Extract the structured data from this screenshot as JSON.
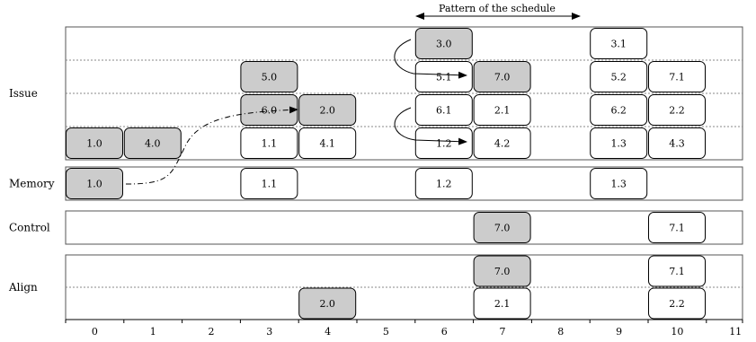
{
  "header": {
    "pattern_label": "Pattern of the schedule"
  },
  "columns": [
    "0",
    "1",
    "2",
    "3",
    "4",
    "5",
    "6",
    "7",
    "8",
    "9",
    "10",
    "11"
  ],
  "units": [
    {
      "id": "issue",
      "label": "Issue",
      "rows": 4,
      "cells": [
        {
          "row": 0,
          "col": 6,
          "text": "3.0",
          "shaded": true
        },
        {
          "row": 0,
          "col": 9,
          "text": "3.1",
          "shaded": false
        },
        {
          "row": 1,
          "col": 3,
          "text": "5.0",
          "shaded": true
        },
        {
          "row": 1,
          "col": 6,
          "text": "5.1",
          "shaded": false
        },
        {
          "row": 1,
          "col": 7,
          "text": "7.0",
          "shaded": true
        },
        {
          "row": 1,
          "col": 9,
          "text": "5.2",
          "shaded": false
        },
        {
          "row": 1,
          "col": 10,
          "text": "7.1",
          "shaded": false
        },
        {
          "row": 2,
          "col": 3,
          "text": "6.0",
          "shaded": true
        },
        {
          "row": 2,
          "col": 4,
          "text": "2.0",
          "shaded": true
        },
        {
          "row": 2,
          "col": 6,
          "text": "6.1",
          "shaded": false
        },
        {
          "row": 2,
          "col": 7,
          "text": "2.1",
          "shaded": false
        },
        {
          "row": 2,
          "col": 9,
          "text": "6.2",
          "shaded": false
        },
        {
          "row": 2,
          "col": 10,
          "text": "2.2",
          "shaded": false
        },
        {
          "row": 3,
          "col": 0,
          "text": "1.0",
          "shaded": true
        },
        {
          "row": 3,
          "col": 1,
          "text": "4.0",
          "shaded": true
        },
        {
          "row": 3,
          "col": 3,
          "text": "1.1",
          "shaded": false
        },
        {
          "row": 3,
          "col": 4,
          "text": "4.1",
          "shaded": false
        },
        {
          "row": 3,
          "col": 6,
          "text": "1.2",
          "shaded": false
        },
        {
          "row": 3,
          "col": 7,
          "text": "4.2",
          "shaded": false
        },
        {
          "row": 3,
          "col": 9,
          "text": "1.3",
          "shaded": false
        },
        {
          "row": 3,
          "col": 10,
          "text": "4.3",
          "shaded": false
        }
      ]
    },
    {
      "id": "memory",
      "label": "Memory",
      "rows": 1,
      "cells": [
        {
          "row": 0,
          "col": 0,
          "text": "1.0",
          "shaded": true
        },
        {
          "row": 0,
          "col": 3,
          "text": "1.1",
          "shaded": false
        },
        {
          "row": 0,
          "col": 6,
          "text": "1.2",
          "shaded": false
        },
        {
          "row": 0,
          "col": 9,
          "text": "1.3",
          "shaded": false
        }
      ]
    },
    {
      "id": "control",
      "label": "Control",
      "rows": 1,
      "cells": [
        {
          "row": 0,
          "col": 7,
          "text": "7.0",
          "shaded": true
        },
        {
          "row": 0,
          "col": 10,
          "text": "7.1",
          "shaded": false
        }
      ]
    },
    {
      "id": "align",
      "label": "Align",
      "rows": 2,
      "cells": [
        {
          "row": 0,
          "col": 7,
          "text": "7.0",
          "shaded": true
        },
        {
          "row": 0,
          "col": 10,
          "text": "7.1",
          "shaded": false
        },
        {
          "row": 1,
          "col": 4,
          "text": "2.0",
          "shaded": true
        },
        {
          "row": 1,
          "col": 7,
          "text": "2.1",
          "shaded": false
        },
        {
          "row": 1,
          "col": 10,
          "text": "2.2",
          "shaded": false
        }
      ]
    }
  ],
  "colors": {
    "shaded_fill": "#cccccc",
    "box_fill": "#ffffff",
    "stroke": "#000000",
    "dotted": "#888888"
  }
}
